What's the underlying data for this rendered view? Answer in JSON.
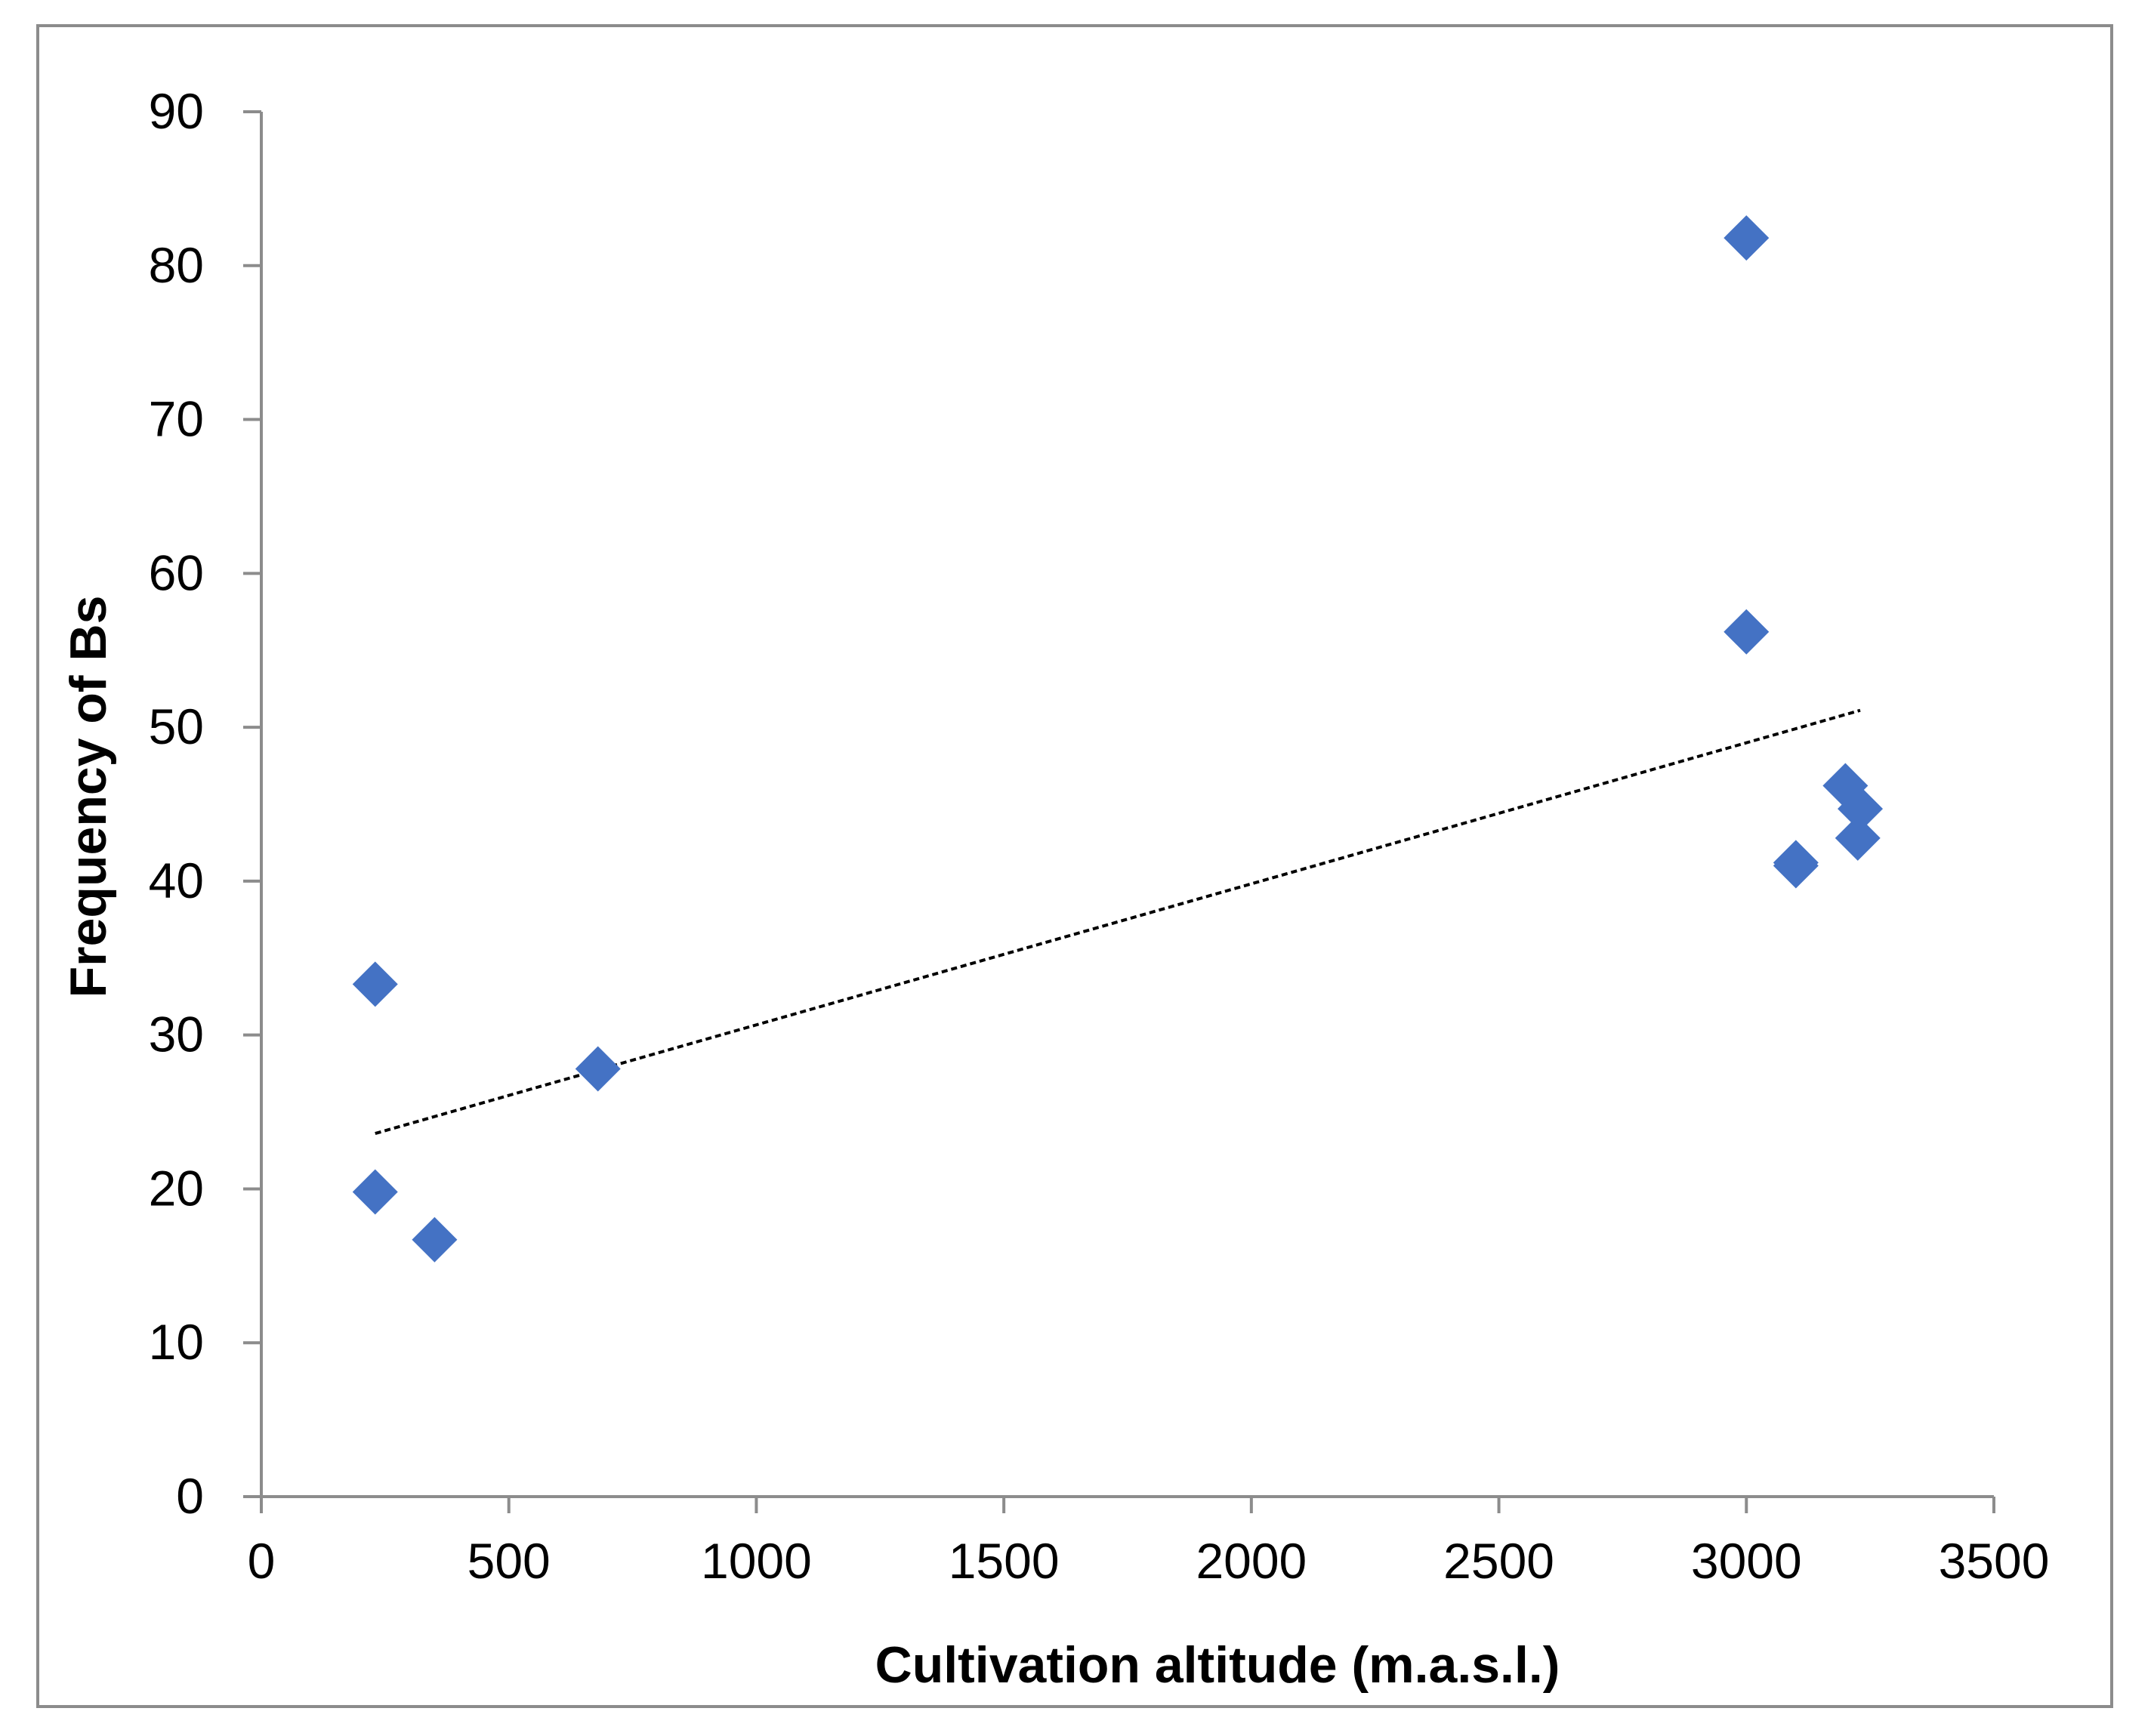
{
  "chart_data": {
    "type": "scatter",
    "title": "",
    "xlabel": "Cultivation altitude (m.a.s.l.)",
    "ylabel": "Frequency of Bs",
    "xlim": [
      0,
      3500
    ],
    "ylim": [
      0,
      90
    ],
    "x_ticks": [
      0,
      500,
      1000,
      1500,
      2000,
      2500,
      3000,
      3500
    ],
    "y_ticks": [
      0,
      10,
      20,
      30,
      40,
      50,
      60,
      70,
      80,
      90
    ],
    "grid": false,
    "legend": "none",
    "series": [
      {
        "marker": "diamond",
        "color": "#4472c4",
        "points": [
          {
            "x": 230,
            "y": 33.3
          },
          {
            "x": 230,
            "y": 19.8
          },
          {
            "x": 350,
            "y": 16.7
          },
          {
            "x": 680,
            "y": 27.8
          },
          {
            "x": 3000,
            "y": 81.8
          },
          {
            "x": 3000,
            "y": 56.2
          },
          {
            "x": 3100,
            "y": 41.2
          },
          {
            "x": 3100,
            "y": 41.0
          },
          {
            "x": 3200,
            "y": 46.2
          },
          {
            "x": 3230,
            "y": 44.7
          },
          {
            "x": 3225,
            "y": 42.8
          }
        ]
      }
    ],
    "trendline": {
      "type": "linear",
      "style": "dotted",
      "color": "#000000",
      "x_range": [
        230,
        3230
      ],
      "y_start": 23.6,
      "y_end": 51.1
    }
  }
}
